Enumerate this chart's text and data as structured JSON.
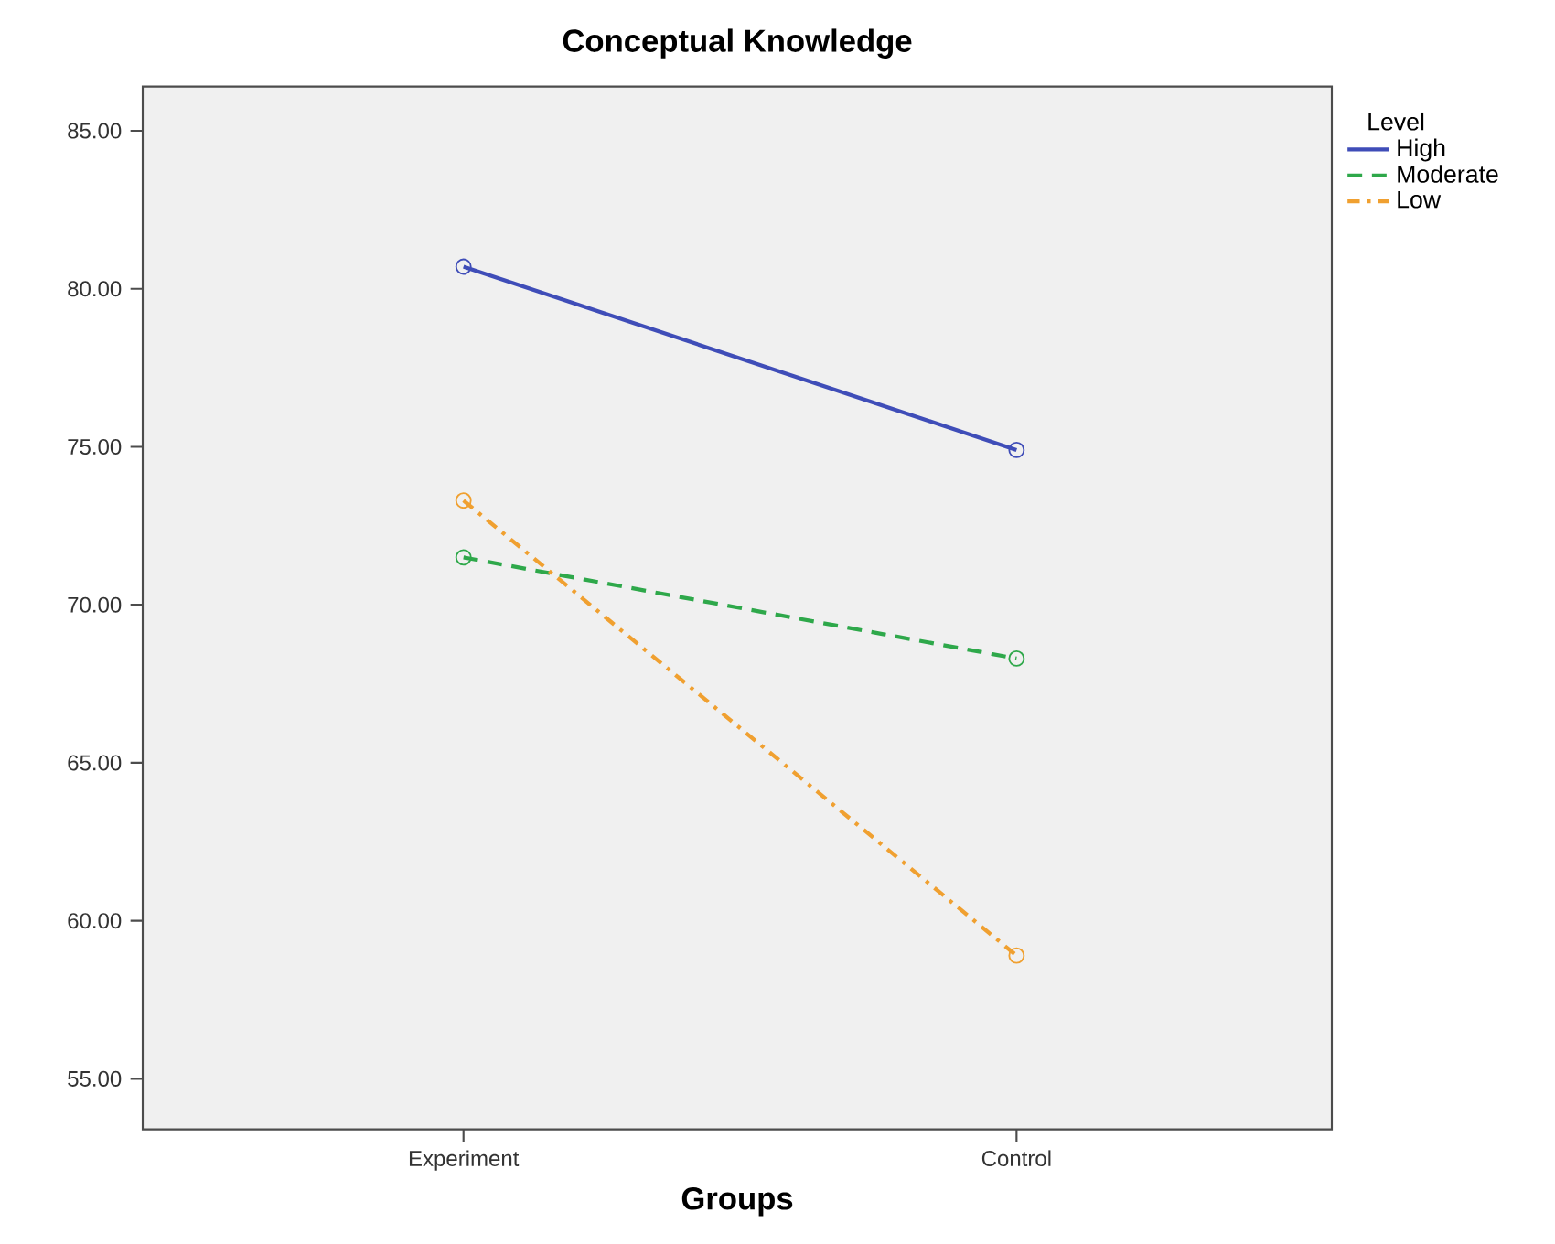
{
  "chart_data": {
    "type": "line",
    "title": "Conceptual Knowledge",
    "xlabel": "Groups",
    "legend_title": "Level",
    "categories": [
      "Experiment",
      "Control"
    ],
    "series": [
      {
        "name": "High",
        "color": "#3f4db8",
        "values": [
          80.7,
          74.9
        ],
        "line_style": "solid"
      },
      {
        "name": "Moderate",
        "color": "#2ea84a",
        "values": [
          71.5,
          68.3
        ],
        "line_style": "dashed"
      },
      {
        "name": "Low",
        "color": "#f0a030",
        "values": [
          73.3,
          58.9
        ],
        "line_style": "dashdot"
      }
    ],
    "ylim": [
      53.4,
      86.4
    ],
    "yticks": [
      {
        "value": 55,
        "label": "55.00"
      },
      {
        "value": 60,
        "label": "60.00"
      },
      {
        "value": 65,
        "label": "65.00"
      },
      {
        "value": 70,
        "label": "70.00"
      },
      {
        "value": 75,
        "label": "75.00"
      },
      {
        "value": 80,
        "label": "80.00"
      },
      {
        "value": 85,
        "label": "85.00"
      }
    ],
    "grid": false,
    "legend": "top right",
    "marker": "circle"
  }
}
